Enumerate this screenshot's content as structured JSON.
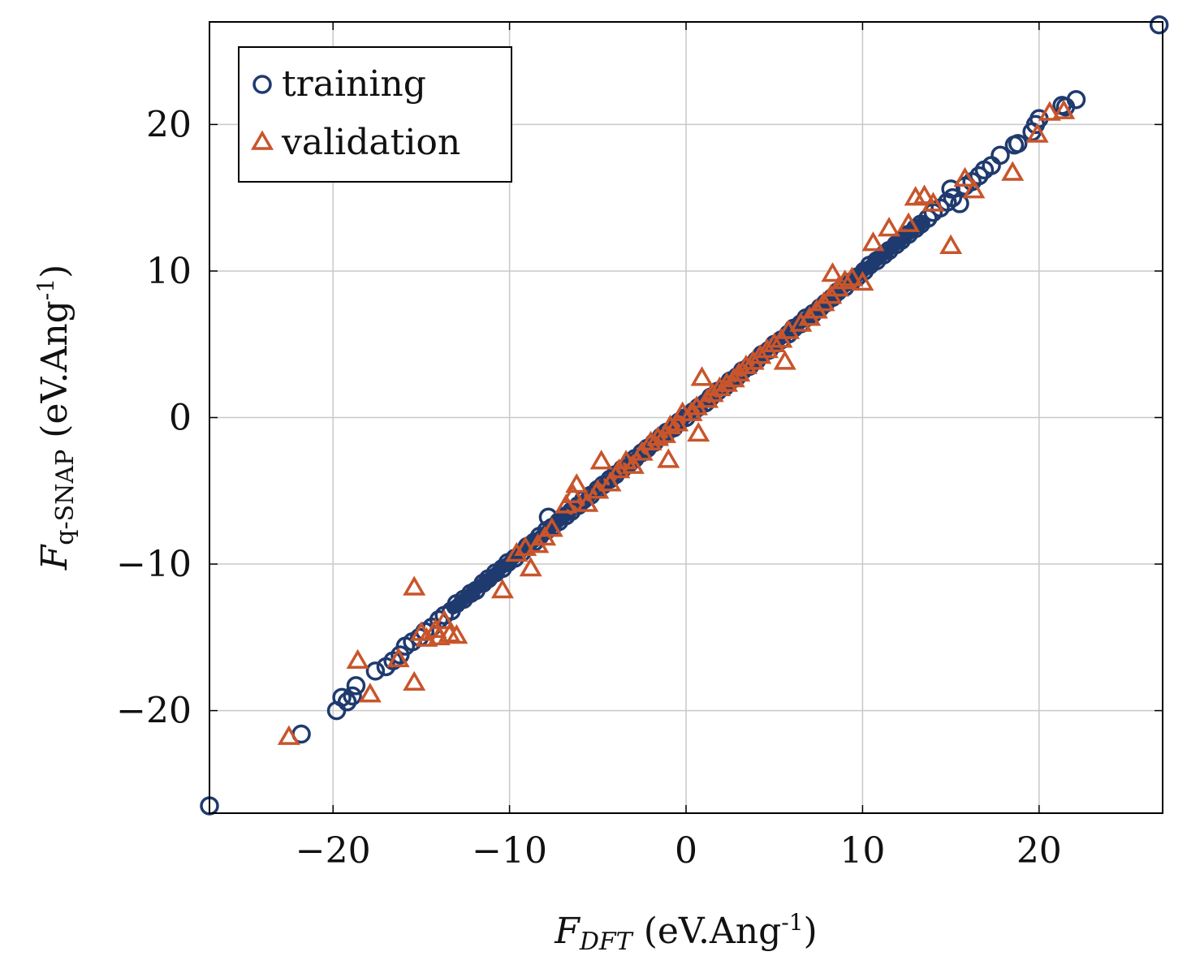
{
  "chart_data": {
    "type": "scatter",
    "title": "",
    "xlabel": {
      "main": "F",
      "sub": "DFT",
      "units": "(eV.Ang",
      "sup": "-1",
      "close": ")"
    },
    "ylabel": {
      "main": "F",
      "sub": "q-SNAP",
      "units": "(eV.Ang",
      "sup": "-1",
      "close": ")"
    },
    "xlim": [
      -27,
      27
    ],
    "ylim": [
      -27,
      27
    ],
    "xticks": [
      -20,
      -10,
      0,
      10,
      20
    ],
    "yticks": [
      -20,
      -10,
      0,
      10,
      20
    ],
    "xtick_labels": [
      "−20",
      "−10",
      "0",
      "10",
      "20"
    ],
    "ytick_labels": [
      "−20",
      "−10",
      "0",
      "10",
      "20"
    ],
    "grid": true,
    "legend_position": "top-left",
    "series": [
      {
        "name": "training",
        "marker": "circle",
        "color": "#1f3a6e",
        "points": [
          [
            -27.0,
            -26.5
          ],
          [
            -21.8,
            -21.6
          ],
          [
            -19.8,
            -20.0
          ],
          [
            -19.5,
            -19.1
          ],
          [
            -19.2,
            -19.4
          ],
          [
            -18.9,
            -19.0
          ],
          [
            -18.7,
            -18.3
          ],
          [
            -17.6,
            -17.3
          ],
          [
            -17.0,
            -17.0
          ],
          [
            -16.6,
            -16.6
          ],
          [
            -16.2,
            -16.2
          ],
          [
            -15.9,
            -15.6
          ],
          [
            -15.5,
            -15.3
          ],
          [
            -15.1,
            -15.0
          ],
          [
            -14.8,
            -14.6
          ],
          [
            -14.4,
            -14.3
          ],
          [
            -14.0,
            -13.8
          ],
          [
            -13.7,
            -13.5
          ],
          [
            -13.3,
            -13.2
          ],
          [
            -13.0,
            -12.7
          ],
          [
            -12.6,
            -12.4
          ],
          [
            -12.2,
            -12.0
          ],
          [
            -11.9,
            -11.8
          ],
          [
            -11.5,
            -11.3
          ],
          [
            -11.2,
            -11.0
          ],
          [
            -10.8,
            -10.6
          ],
          [
            -10.4,
            -10.3
          ],
          [
            -10.1,
            -9.9
          ],
          [
            -9.7,
            -9.6
          ],
          [
            -9.3,
            -9.2
          ],
          [
            -9.0,
            -8.8
          ],
          [
            -8.6,
            -8.5
          ],
          [
            -8.3,
            -8.1
          ],
          [
            -7.9,
            -7.7
          ],
          [
            -7.6,
            -7.5
          ],
          [
            -7.8,
            -6.8
          ],
          [
            -7.2,
            -7.1
          ],
          [
            -6.8,
            -6.7
          ],
          [
            -6.5,
            -6.4
          ],
          [
            -6.1,
            -6.0
          ],
          [
            -5.8,
            -5.6
          ],
          [
            -5.4,
            -5.3
          ],
          [
            -5.0,
            -4.9
          ],
          [
            -4.7,
            -4.6
          ],
          [
            -4.3,
            -4.2
          ],
          [
            -4.0,
            -3.9
          ],
          [
            -3.6,
            -3.5
          ],
          [
            -3.2,
            -3.1
          ],
          [
            -2.9,
            -2.8
          ],
          [
            -2.5,
            -2.4
          ],
          [
            -2.2,
            -2.1
          ],
          [
            -1.8,
            -1.7
          ],
          [
            -1.4,
            -1.3
          ],
          [
            -1.1,
            -1.0
          ],
          [
            -0.7,
            -0.7
          ],
          [
            -0.4,
            -0.3
          ],
          [
            0.0,
            0.0
          ],
          [
            0.4,
            0.4
          ],
          [
            0.7,
            0.7
          ],
          [
            1.1,
            1.0
          ],
          [
            1.4,
            1.4
          ],
          [
            1.8,
            1.8
          ],
          [
            2.2,
            2.1
          ],
          [
            2.5,
            2.5
          ],
          [
            2.9,
            2.8
          ],
          [
            3.2,
            3.2
          ],
          [
            3.6,
            3.5
          ],
          [
            4.0,
            3.9
          ],
          [
            4.3,
            4.3
          ],
          [
            4.7,
            4.6
          ],
          [
            5.0,
            5.0
          ],
          [
            5.4,
            5.3
          ],
          [
            5.8,
            5.7
          ],
          [
            6.1,
            6.1
          ],
          [
            6.5,
            6.4
          ],
          [
            6.8,
            6.8
          ],
          [
            7.2,
            7.1
          ],
          [
            7.6,
            7.5
          ],
          [
            7.9,
            7.8
          ],
          [
            8.3,
            8.2
          ],
          [
            8.6,
            8.6
          ],
          [
            9.0,
            8.9
          ],
          [
            9.4,
            9.3
          ],
          [
            9.7,
            9.6
          ],
          [
            10.1,
            10.0
          ],
          [
            10.4,
            10.4
          ],
          [
            10.8,
            10.7
          ],
          [
            11.2,
            11.1
          ],
          [
            11.5,
            11.4
          ],
          [
            11.9,
            11.8
          ],
          [
            12.2,
            12.1
          ],
          [
            12.6,
            12.5
          ],
          [
            13.0,
            12.9
          ],
          [
            13.3,
            13.2
          ],
          [
            13.7,
            13.6
          ],
          [
            14.0,
            14.0
          ],
          [
            14.4,
            14.3
          ],
          [
            14.8,
            14.7
          ],
          [
            15.1,
            15.0
          ],
          [
            15.0,
            15.6
          ],
          [
            15.5,
            14.6
          ],
          [
            15.8,
            15.8
          ],
          [
            16.2,
            16.1
          ],
          [
            16.6,
            16.5
          ],
          [
            16.9,
            16.9
          ],
          [
            17.3,
            17.2
          ],
          [
            17.8,
            17.9
          ],
          [
            18.6,
            18.6
          ],
          [
            18.8,
            18.7
          ],
          [
            19.6,
            19.5
          ],
          [
            19.8,
            20.0
          ],
          [
            20.0,
            20.4
          ],
          [
            21.3,
            21.3
          ],
          [
            21.5,
            21.2
          ],
          [
            22.1,
            21.7
          ],
          [
            26.8,
            26.8
          ]
        ]
      },
      {
        "name": "validation",
        "marker": "triangle",
        "color": "#c8552b",
        "points": [
          [
            -22.5,
            -21.8
          ],
          [
            -18.6,
            -16.6
          ],
          [
            -17.9,
            -18.9
          ],
          [
            -16.3,
            -16.5
          ],
          [
            -15.4,
            -18.1
          ],
          [
            -15.4,
            -11.6
          ],
          [
            -15.0,
            -14.7
          ],
          [
            -14.7,
            -15.1
          ],
          [
            -14.2,
            -14.5
          ],
          [
            -14.0,
            -15.0
          ],
          [
            -13.7,
            -13.9
          ],
          [
            -13.4,
            -14.8
          ],
          [
            -13.0,
            -14.9
          ],
          [
            -10.4,
            -11.8
          ],
          [
            -9.6,
            -9.3
          ],
          [
            -9.1,
            -8.9
          ],
          [
            -8.8,
            -10.3
          ],
          [
            -8.4,
            -8.7
          ],
          [
            -8.0,
            -8.2
          ],
          [
            -7.6,
            -7.6
          ],
          [
            -6.8,
            -6.0
          ],
          [
            -6.4,
            -5.3
          ],
          [
            -6.2,
            -4.6
          ],
          [
            -5.6,
            -5.9
          ],
          [
            -5.0,
            -5.0
          ],
          [
            -4.8,
            -3.0
          ],
          [
            -4.3,
            -4.5
          ],
          [
            -3.8,
            -3.6
          ],
          [
            -3.4,
            -3.0
          ],
          [
            -3.0,
            -3.3
          ],
          [
            -2.5,
            -2.4
          ],
          [
            -2.0,
            -1.7
          ],
          [
            -1.6,
            -1.4
          ],
          [
            -1.2,
            -1.2
          ],
          [
            -0.9,
            -0.6
          ],
          [
            -0.5,
            -0.4
          ],
          [
            -1.0,
            -2.9
          ],
          [
            -0.2,
            0.3
          ],
          [
            0.3,
            0.3
          ],
          [
            0.6,
            0.7
          ],
          [
            0.7,
            -1.1
          ],
          [
            0.9,
            2.7
          ],
          [
            1.2,
            1.2
          ],
          [
            1.5,
            1.6
          ],
          [
            1.9,
            2.0
          ],
          [
            2.3,
            2.3
          ],
          [
            2.7,
            2.6
          ],
          [
            3.0,
            3.0
          ],
          [
            3.4,
            3.5
          ],
          [
            3.8,
            3.8
          ],
          [
            4.2,
            4.2
          ],
          [
            4.6,
            4.6
          ],
          [
            5.0,
            5.0
          ],
          [
            5.4,
            5.3
          ],
          [
            5.8,
            5.9
          ],
          [
            5.6,
            3.8
          ],
          [
            6.5,
            6.4
          ],
          [
            7.0,
            6.8
          ],
          [
            7.4,
            7.3
          ],
          [
            7.8,
            7.8
          ],
          [
            8.2,
            8.3
          ],
          [
            8.6,
            8.8
          ],
          [
            9.0,
            9.3
          ],
          [
            8.3,
            9.8
          ],
          [
            9.4,
            9.5
          ],
          [
            10.0,
            9.2
          ],
          [
            10.6,
            11.9
          ],
          [
            11.5,
            12.9
          ],
          [
            12.6,
            13.2
          ],
          [
            13.0,
            15.0
          ],
          [
            13.5,
            15.1
          ],
          [
            14.0,
            14.6
          ],
          [
            15.0,
            11.7
          ],
          [
            15.8,
            16.3
          ],
          [
            16.3,
            15.5
          ],
          [
            18.5,
            16.7
          ],
          [
            19.9,
            19.3
          ],
          [
            20.6,
            20.8
          ],
          [
            21.4,
            20.9
          ]
        ]
      }
    ]
  }
}
